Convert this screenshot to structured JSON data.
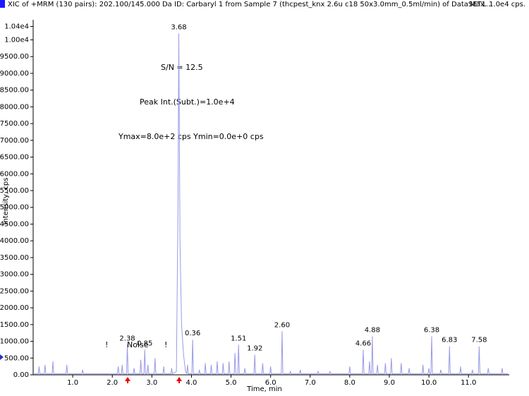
{
  "chart_data": {
    "type": "line",
    "title": "XIC of +MRM (130 pairs): 202.100/145.000 Da ID: Carbaryl 1 from Sample 7 (thcpest_knx 2.6u c18 50x3.0mm_0.5ml/min) of DataSET1...",
    "max_label": "Max. 1.0e4 cps.",
    "x_label": "Time, min",
    "y_label": "Intensity, cps",
    "color": "#9a9ae8",
    "xlim": [
      0,
      12.03
    ],
    "ylim": [
      0,
      10600
    ],
    "xticks": [
      {
        "value": 1,
        "label": "1.0"
      },
      {
        "value": 2,
        "label": "2.0"
      },
      {
        "value": 3,
        "label": "3.0"
      },
      {
        "value": 4,
        "label": "4.0"
      },
      {
        "value": 5,
        "label": "5.0"
      },
      {
        "value": 6,
        "label": "6.0"
      },
      {
        "value": 7,
        "label": "7.0"
      },
      {
        "value": 8,
        "label": "8.0"
      },
      {
        "value": 9,
        "label": "9.0"
      },
      {
        "value": 10,
        "label": "10.0"
      },
      {
        "value": 11,
        "label": "11.0"
      }
    ],
    "yticks": [
      {
        "value": 0,
        "label": "0.00"
      },
      {
        "value": 500,
        "label": "500.00"
      },
      {
        "value": 1000,
        "label": "1000.00"
      },
      {
        "value": 1500,
        "label": "1500.00"
      },
      {
        "value": 2000,
        "label": "2000.00"
      },
      {
        "value": 2500,
        "label": "2500.00"
      },
      {
        "value": 3000,
        "label": "3000.00"
      },
      {
        "value": 3500,
        "label": "3500.00"
      },
      {
        "value": 4000,
        "label": "4000.00"
      },
      {
        "value": 4500,
        "label": "4500.00"
      },
      {
        "value": 5000,
        "label": "5000.00"
      },
      {
        "value": 5500,
        "label": "5500.00"
      },
      {
        "value": 6000,
        "label": "6000.00"
      },
      {
        "value": 6500,
        "label": "6500.00"
      },
      {
        "value": 7000,
        "label": "7000.00"
      },
      {
        "value": 7500,
        "label": "7500.00"
      },
      {
        "value": 8000,
        "label": "8000.00"
      },
      {
        "value": 8500,
        "label": "8500.00"
      },
      {
        "value": 9000,
        "label": "9000.00"
      },
      {
        "value": 9500,
        "label": "9500.00"
      },
      {
        "value": 10000,
        "label": "1.00e4"
      },
      {
        "value": 10400,
        "label": "1.04e4"
      }
    ],
    "x": [
      0,
      0.13,
      0.15,
      0.17,
      0.28,
      0.3,
      0.32,
      0.48,
      0.5,
      0.52,
      0.83,
      0.85,
      0.87,
      1.23,
      1.25,
      1.27,
      2.13,
      2.15,
      2.17,
      2.23,
      2.25,
      2.27,
      2.36,
      2.38,
      2.4,
      2.53,
      2.55,
      2.57,
      2.7,
      2.72,
      2.74,
      2.8,
      2.82,
      2.84,
      2.88,
      2.9,
      2.92,
      3.06,
      3.08,
      3.1,
      3.28,
      3.3,
      3.32,
      3.48,
      3.5,
      3.52,
      3.62,
      3.66,
      3.68,
      3.71,
      3.75,
      3.8,
      3.85,
      3.88,
      3.9,
      3.92,
      4.01,
      4.03,
      4.05,
      4.18,
      4.2,
      4.22,
      4.33,
      4.35,
      4.37,
      4.48,
      4.5,
      4.52,
      4.63,
      4.65,
      4.67,
      4.78,
      4.8,
      4.82,
      4.93,
      4.95,
      4.97,
      5.08,
      5.1,
      5.12,
      5.17,
      5.19,
      5.21,
      5.33,
      5.35,
      5.37,
      5.58,
      5.6,
      5.62,
      5.78,
      5.8,
      5.82,
      5.98,
      6.0,
      6.02,
      6.27,
      6.29,
      6.31,
      6.48,
      6.5,
      6.52,
      6.73,
      6.75,
      6.77,
      7.18,
      7.2,
      7.22,
      7.48,
      7.5,
      7.52,
      7.98,
      8.0,
      8.02,
      8.32,
      8.34,
      8.36,
      8.48,
      8.5,
      8.52,
      8.55,
      8.57,
      8.59,
      8.68,
      8.7,
      8.72,
      8.88,
      8.9,
      8.92,
      9.03,
      9.05,
      9.07,
      9.28,
      9.3,
      9.32,
      9.48,
      9.5,
      9.52,
      9.83,
      9.85,
      9.87,
      9.98,
      10.0,
      10.02,
      10.05,
      10.07,
      10.09,
      10.28,
      10.3,
      10.32,
      10.5,
      10.52,
      10.54,
      10.78,
      10.8,
      10.82,
      11.08,
      11.1,
      11.12,
      11.25,
      11.27,
      11.29,
      11.48,
      11.5,
      11.52,
      11.83,
      11.85,
      11.87,
      12.0
    ],
    "values": [
      30,
      30,
      250,
      30,
      30,
      300,
      30,
      30,
      400,
      30,
      30,
      300,
      30,
      30,
      150,
      30,
      30,
      250,
      30,
      30,
      300,
      30,
      30,
      900,
      30,
      30,
      200,
      30,
      30,
      450,
      30,
      30,
      750,
      30,
      30,
      300,
      30,
      30,
      500,
      30,
      30,
      250,
      30,
      30,
      200,
      30,
      100,
      5000,
      10190,
      4000,
      1500,
      600,
      100,
      30,
      300,
      30,
      30,
      1050,
      30,
      30,
      150,
      30,
      30,
      350,
      30,
      30,
      300,
      30,
      30,
      400,
      30,
      30,
      350,
      30,
      30,
      400,
      30,
      30,
      650,
      30,
      30,
      900,
      30,
      30,
      200,
      30,
      30,
      600,
      30,
      30,
      350,
      30,
      30,
      250,
      30,
      30,
      1300,
      30,
      30,
      100,
      30,
      30,
      150,
      30,
      30,
      100,
      30,
      30,
      100,
      30,
      30,
      250,
      30,
      30,
      750,
      30,
      30,
      400,
      30,
      30,
      1150,
      30,
      30,
      300,
      30,
      30,
      350,
      30,
      30,
      500,
      30,
      30,
      350,
      30,
      30,
      200,
      30,
      30,
      300,
      30,
      30,
      200,
      30,
      30,
      1150,
      30,
      30,
      150,
      30,
      30,
      850,
      30,
      30,
      250,
      30,
      30,
      150,
      30,
      30,
      850,
      30,
      30,
      200,
      30,
      30,
      200,
      30,
      30
    ],
    "peak_labels": [
      {
        "label": "3.68",
        "x": 3.68,
        "y": 10190
      },
      {
        "label": "2.38",
        "x": 2.38,
        "y": 900
      },
      {
        "label": "0.85",
        "x": 2.82,
        "y": 750
      },
      {
        "label": "0.36",
        "x": 4.03,
        "y": 1050
      },
      {
        "label": "1.51",
        "x": 5.19,
        "y": 900
      },
      {
        "label": "1.92",
        "x": 5.6,
        "y": 600
      },
      {
        "label": "2.60",
        "x": 6.29,
        "y": 1300
      },
      {
        "label": "4.66",
        "x": 8.34,
        "y": 750
      },
      {
        "label": "4.88",
        "x": 8.57,
        "y": 1150
      },
      {
        "label": "6.38",
        "x": 10.07,
        "y": 1150
      },
      {
        "label": "6.83",
        "x": 10.52,
        "y": 850
      },
      {
        "label": "7.58",
        "x": 11.27,
        "y": 850
      }
    ],
    "annotations": [
      "S/N = 12.5",
      "Peak Int.(Subt.)=1.0e+4",
      "Ymax=8.0e+2 cps  Ymin=0.0e+0 cps",
      "Noise",
      "!",
      "!"
    ]
  }
}
